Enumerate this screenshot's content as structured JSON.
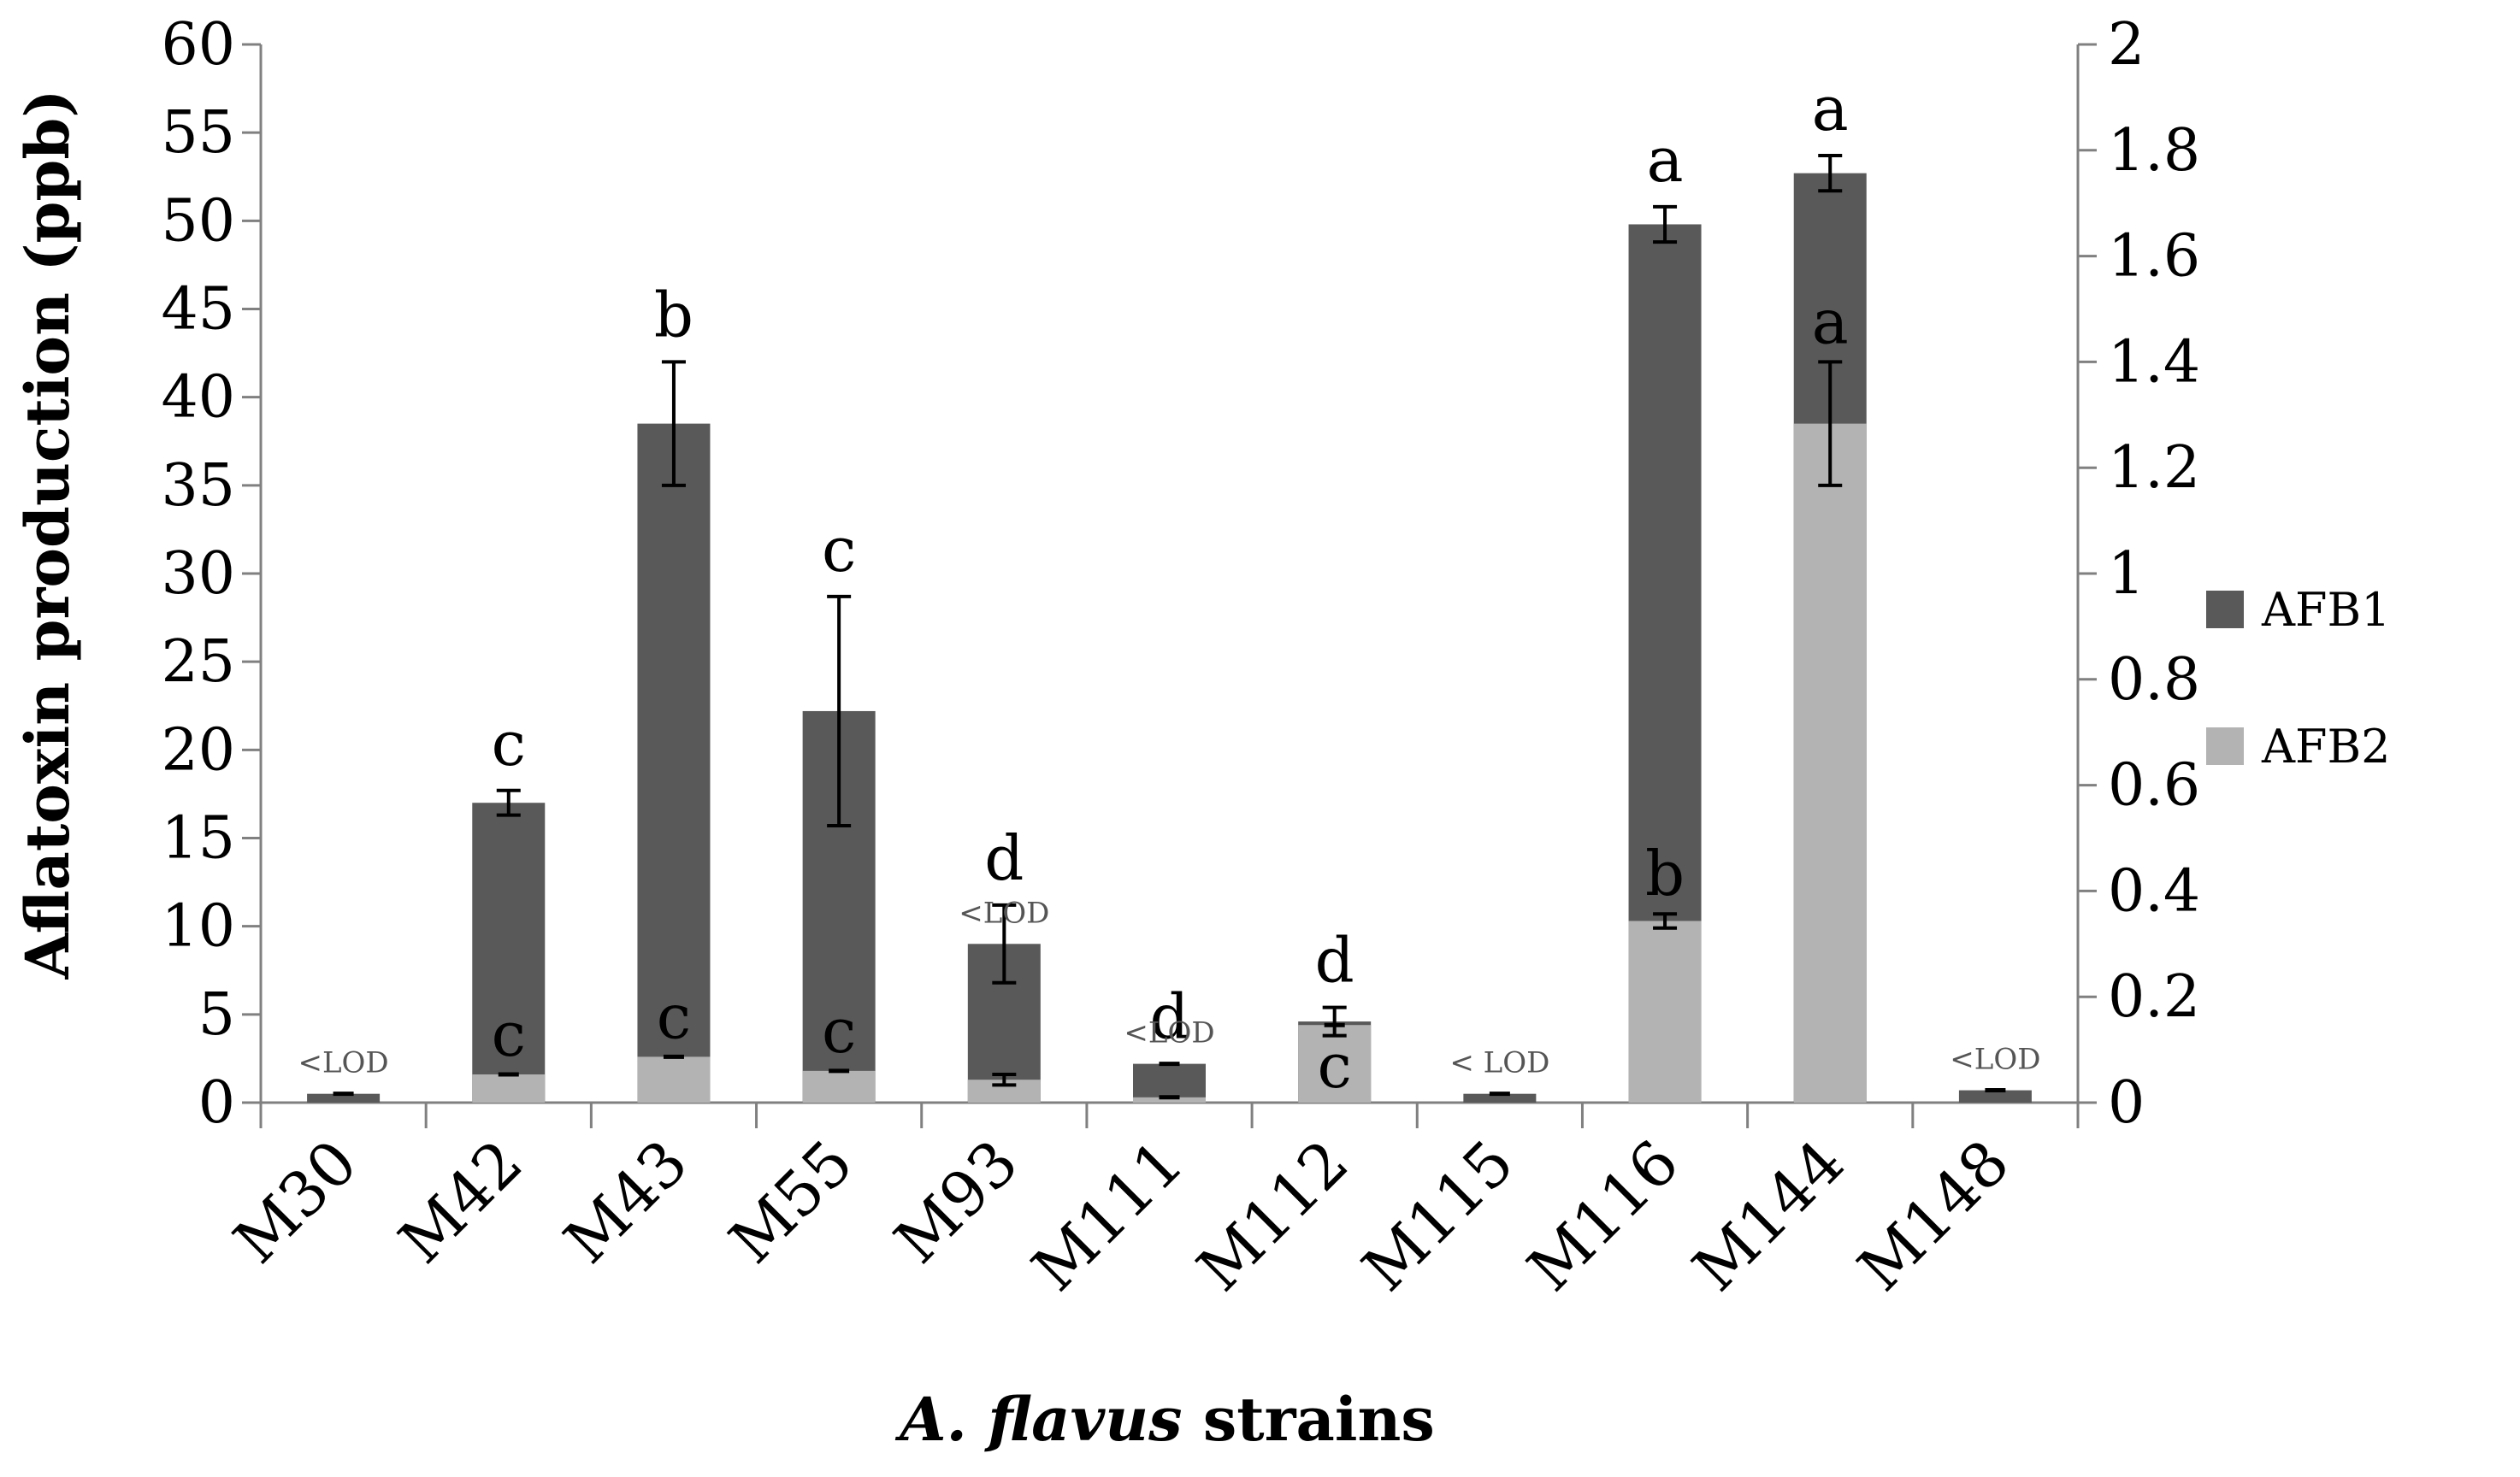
{
  "chart_data": {
    "type": "bar",
    "stacked": true,
    "xlabel_italic": "A. flavus",
    "xlabel_rest": " strains",
    "ylabel": "Aflatoxin production (ppb)",
    "ylim": [
      0,
      60
    ],
    "y_ticks": [
      0,
      5,
      10,
      15,
      20,
      25,
      30,
      35,
      40,
      45,
      50,
      55,
      60
    ],
    "y2lim": [
      0,
      2
    ],
    "y2_ticks": [
      "0",
      "0.2",
      "0.4",
      "0.6",
      "0.8",
      "1",
      "1.2",
      "1.4",
      "1.6",
      "1.8",
      "2"
    ],
    "legend_position": "right",
    "grid": false,
    "categories": [
      "M30",
      "M42",
      "M43",
      "M55",
      "M93",
      "M111",
      "M112",
      "M115",
      "M116",
      "M144",
      "M148"
    ],
    "series": [
      {
        "name": "AFB1",
        "color": "#595959",
        "values": [
          0.5,
          17.0,
          38.5,
          22.2,
          9.0,
          2.2,
          4.6,
          0.5,
          49.8,
          52.7,
          0.7
        ],
        "error": [
          0,
          0.7,
          3.5,
          6.5,
          2.2,
          0,
          0.8,
          0,
          1.0,
          1.0,
          0
        ],
        "letters": [
          "",
          "c",
          "b",
          "c",
          "d",
          "d",
          "d",
          "",
          "a",
          "a",
          ""
        ],
        "labels": [
          "<LOD",
          "",
          "",
          "",
          "",
          "",
          "",
          "< LOD",
          "",
          "",
          "<LOD"
        ]
      },
      {
        "name": "AFB2",
        "color": "#b3b3b3",
        "values": [
          0,
          1.6,
          2.6,
          1.8,
          1.3,
          0.3,
          4.4,
          0,
          10.3,
          38.5,
          0
        ],
        "error": [
          0,
          0,
          0,
          0,
          0.3,
          0,
          0,
          0,
          0.4,
          3.5,
          0
        ],
        "letters": [
          "",
          "c",
          "c",
          "c",
          "",
          "",
          "c",
          "",
          "b",
          "a",
          ""
        ],
        "labels": [
          "",
          "",
          "",
          "",
          "<LOD",
          "<LOD",
          "",
          "",
          "",
          "",
          ""
        ]
      }
    ]
  }
}
